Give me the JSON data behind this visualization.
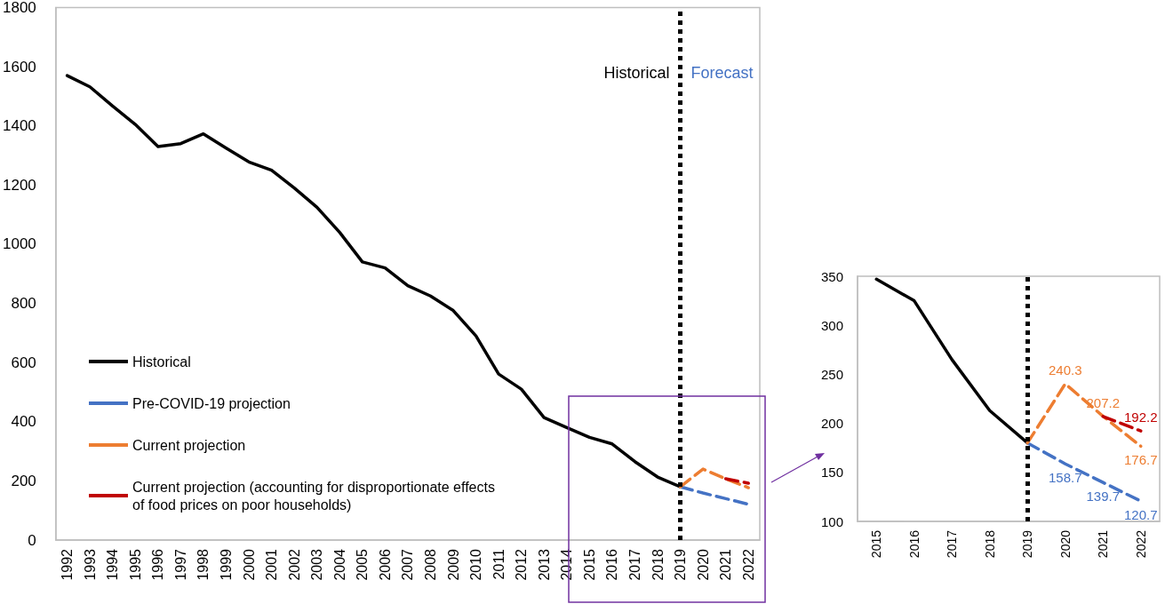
{
  "chart_data": [
    {
      "type": "line",
      "categories": [
        "1992",
        "1993",
        "1994",
        "1995",
        "1996",
        "1997",
        "1998",
        "1999",
        "2000",
        "2001",
        "2002",
        "2003",
        "2004",
        "2005",
        "2006",
        "2007",
        "2008",
        "2009",
        "2010",
        "2011",
        "2012",
        "2013",
        "2014",
        "2015",
        "2016",
        "2017",
        "2018",
        "2019",
        "2020",
        "2021",
        "2022"
      ],
      "ylim": [
        0,
        1800
      ],
      "yticks": [
        0,
        200,
        400,
        600,
        800,
        1000,
        1200,
        1400,
        1600,
        1800
      ],
      "grid": false,
      "legend": "left",
      "marker": "none",
      "annotations": [
        "Historical",
        "Forecast"
      ],
      "ref_lines": [
        {
          "axis": "x",
          "value": "2019",
          "color": "#000000",
          "line_style": "dotted"
        }
      ],
      "series": [
        {
          "name": "Historical",
          "color": "#000000",
          "line_style": "solid",
          "values": [
            1570,
            1532,
            1467,
            1405,
            1330,
            1340,
            1373,
            1325,
            1278,
            1250,
            1190,
            1125,
            1040,
            940,
            920,
            860,
            825,
            776,
            690,
            561,
            510,
            414,
            380,
            347,
            325,
            265,
            213,
            180,
            null,
            null,
            null
          ]
        },
        {
          "name": "Pre-COVID-19 projection",
          "color": "#4472c4",
          "line_style": "dashed",
          "values": [
            null,
            null,
            null,
            null,
            null,
            null,
            null,
            null,
            null,
            null,
            null,
            null,
            null,
            null,
            null,
            null,
            null,
            null,
            null,
            null,
            null,
            null,
            null,
            null,
            null,
            null,
            null,
            180,
            159,
            140,
            121
          ]
        },
        {
          "name": "Current projection",
          "color": "#ed7d31",
          "line_style": "dashed",
          "values": [
            null,
            null,
            null,
            null,
            null,
            null,
            null,
            null,
            null,
            null,
            null,
            null,
            null,
            null,
            null,
            null,
            null,
            null,
            null,
            null,
            null,
            null,
            null,
            null,
            null,
            null,
            null,
            180,
            240,
            207,
            177
          ]
        },
        {
          "name": "Current projection (accounting for disproportionate effects of food prices on poor households)",
          "color": "#c00000",
          "line_style": "dashed",
          "values": [
            null,
            null,
            null,
            null,
            null,
            null,
            null,
            null,
            null,
            null,
            null,
            null,
            null,
            null,
            null,
            null,
            null,
            null,
            null,
            null,
            null,
            null,
            null,
            null,
            null,
            null,
            null,
            null,
            null,
            207,
            192
          ]
        }
      ]
    },
    {
      "type": "line",
      "categories": [
        "2015",
        "2016",
        "2017",
        "2018",
        "2019",
        "2020",
        "2021",
        "2022"
      ],
      "ylim": [
        100,
        350
      ],
      "yticks": [
        100,
        150,
        200,
        250,
        300,
        350
      ],
      "grid": false,
      "marker": "none",
      "ref_lines": [
        {
          "axis": "x",
          "value": "2019",
          "color": "#000000",
          "line_style": "dotted"
        }
      ],
      "series": [
        {
          "color": "#000000",
          "line_style": "solid",
          "values": [
            347,
            325,
            265,
            213,
            180,
            null,
            null,
            null
          ]
        },
        {
          "color": "#4472c4",
          "line_style": "dashed",
          "values": [
            null,
            null,
            null,
            null,
            180,
            158.7,
            139.7,
            120.7
          ],
          "value_labels": [
            null,
            null,
            null,
            null,
            null,
            "158.7",
            "139.7",
            "120.7"
          ]
        },
        {
          "color": "#ed7d31",
          "line_style": "dashed",
          "values": [
            null,
            null,
            null,
            null,
            180,
            240.3,
            207.2,
            176.7
          ],
          "value_labels": [
            null,
            null,
            null,
            null,
            null,
            "240.3",
            "207.2",
            "176.7"
          ]
        },
        {
          "color": "#c00000",
          "line_style": "dashed",
          "values": [
            null,
            null,
            null,
            null,
            null,
            null,
            207,
            192.2
          ],
          "value_labels": [
            null,
            null,
            null,
            null,
            null,
            null,
            null,
            "192.2"
          ]
        }
      ]
    }
  ]
}
